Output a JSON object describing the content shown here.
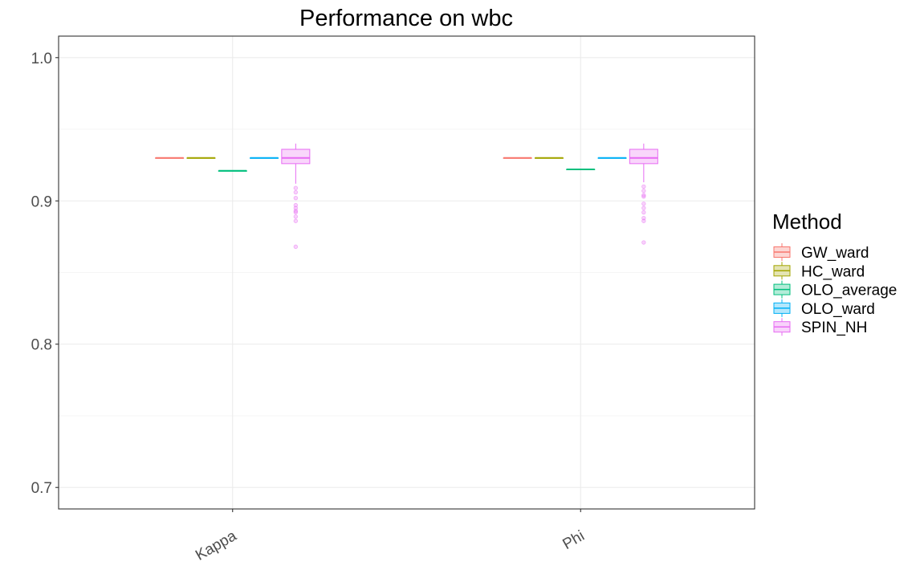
{
  "chart_data": {
    "type": "boxplot",
    "title": "Performance on wbc",
    "xlabel": "",
    "ylabel": "",
    "categories": [
      "Kappa",
      "Phi"
    ],
    "ylim": [
      0.685,
      1.015
    ],
    "yticks": [
      0.7,
      0.8,
      0.9,
      1.0
    ],
    "ytick_labels": [
      "0.7",
      "0.8",
      "0.9",
      "1.0"
    ],
    "grid": true,
    "legend": {
      "title": "Method",
      "position": "right"
    },
    "series": [
      {
        "name": "GW_ward",
        "color": "#F8766D",
        "fill": "#FCD6D3",
        "boxes": [
          {
            "min": 0.93,
            "q1": 0.93,
            "median": 0.93,
            "q3": 0.93,
            "max": 0.93,
            "outliers": []
          },
          {
            "min": 0.93,
            "q1": 0.93,
            "median": 0.93,
            "q3": 0.93,
            "max": 0.93,
            "outliers": []
          }
        ]
      },
      {
        "name": "HC_ward",
        "color": "#A3A500",
        "fill": "#E4E4B3",
        "boxes": [
          {
            "min": 0.93,
            "q1": 0.93,
            "median": 0.93,
            "q3": 0.93,
            "max": 0.93,
            "outliers": []
          },
          {
            "min": 0.93,
            "q1": 0.93,
            "median": 0.93,
            "q3": 0.93,
            "max": 0.93,
            "outliers": []
          }
        ]
      },
      {
        "name": "OLO_average",
        "color": "#00BF7D",
        "fill": "#B3ECD8",
        "boxes": [
          {
            "min": 0.921,
            "q1": 0.921,
            "median": 0.921,
            "q3": 0.921,
            "max": 0.921,
            "outliers": []
          },
          {
            "min": 0.922,
            "q1": 0.922,
            "median": 0.922,
            "q3": 0.922,
            "max": 0.922,
            "outliers": []
          }
        ]
      },
      {
        "name": "OLO_ward",
        "color": "#00B0F6",
        "fill": "#B3E7FC",
        "boxes": [
          {
            "min": 0.93,
            "q1": 0.93,
            "median": 0.93,
            "q3": 0.93,
            "max": 0.93,
            "outliers": []
          },
          {
            "min": 0.93,
            "q1": 0.93,
            "median": 0.93,
            "q3": 0.93,
            "max": 0.93,
            "outliers": []
          }
        ]
      },
      {
        "name": "SPIN_NH",
        "color": "#E76BF3",
        "fill": "#F8D2FB",
        "boxes": [
          {
            "min": 0.912,
            "q1": 0.926,
            "median": 0.93,
            "q3": 0.936,
            "max": 0.94,
            "outliers": [
              0.909,
              0.906,
              0.902,
              0.897,
              0.895,
              0.893,
              0.892,
              0.889,
              0.886,
              0.868
            ]
          },
          {
            "min": 0.913,
            "q1": 0.926,
            "median": 0.93,
            "q3": 0.936,
            "max": 0.94,
            "outliers": [
              0.91,
              0.907,
              0.904,
              0.903,
              0.898,
              0.895,
              0.892,
              0.888,
              0.886,
              0.871
            ]
          }
        ]
      }
    ]
  }
}
